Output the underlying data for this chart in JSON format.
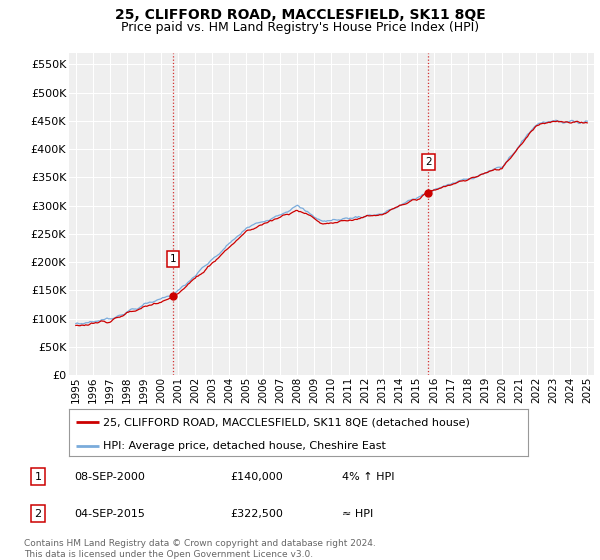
{
  "title": "25, CLIFFORD ROAD, MACCLESFIELD, SK11 8QE",
  "subtitle": "Price paid vs. HM Land Registry's House Price Index (HPI)",
  "ytick_values": [
    0,
    50000,
    100000,
    150000,
    200000,
    250000,
    300000,
    350000,
    400000,
    450000,
    500000,
    550000
  ],
  "ylim": [
    0,
    570000
  ],
  "xtick_years": [
    1995,
    1996,
    1997,
    1998,
    1999,
    2000,
    2001,
    2002,
    2003,
    2004,
    2005,
    2006,
    2007,
    2008,
    2009,
    2010,
    2011,
    2012,
    2013,
    2014,
    2015,
    2016,
    2017,
    2018,
    2019,
    2020,
    2021,
    2022,
    2023,
    2024,
    2025
  ],
  "sale1_x": 2000.69,
  "sale1_y": 140000,
  "sale1_label": "1",
  "sale2_x": 2015.68,
  "sale2_y": 322500,
  "sale2_label": "2",
  "red_line_color": "#cc0000",
  "blue_line_color": "#7aabdb",
  "annotation_box_color": "#cc0000",
  "background_color": "#ffffff",
  "plot_bg_color": "#efefef",
  "grid_color": "#ffffff",
  "legend_label_red": "25, CLIFFORD ROAD, MACCLESFIELD, SK11 8QE (detached house)",
  "legend_label_blue": "HPI: Average price, detached house, Cheshire East",
  "table_row1": [
    "1",
    "08-SEP-2000",
    "£140,000",
    "4% ↑ HPI"
  ],
  "table_row2": [
    "2",
    "04-SEP-2015",
    "£322,500",
    "≈ HPI"
  ],
  "footnote": "Contains HM Land Registry data © Crown copyright and database right 2024.\nThis data is licensed under the Open Government Licence v3.0.",
  "title_fontsize": 10,
  "subtitle_fontsize": 9,
  "tick_fontsize": 8,
  "legend_fontsize": 8,
  "table_fontsize": 8,
  "footnote_fontsize": 6.5
}
